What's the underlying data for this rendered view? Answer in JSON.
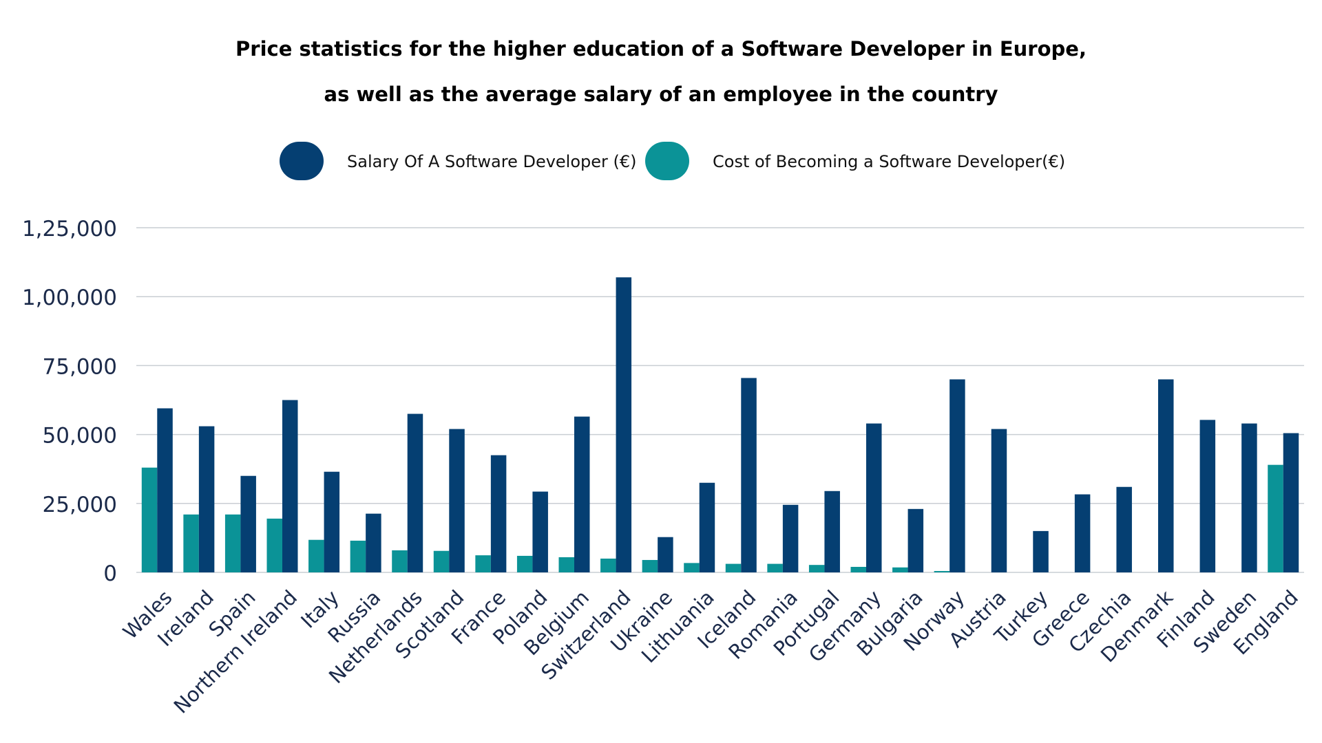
{
  "chart_data": {
    "type": "bar",
    "title": "Price statistics for the higher education of a Software Developer in Europe,",
    "subtitle": "as well as the average salary of an employee in the country",
    "xlabel": "",
    "ylabel": "",
    "ylim": [
      0,
      125000
    ],
    "yticks": [
      0,
      25000,
      50000,
      75000,
      100000,
      125000
    ],
    "ytick_labels": [
      "0",
      "25,000",
      "50,000",
      "75,000",
      "1,00,000",
      "1,25,000"
    ],
    "grid": true,
    "legend_position": "top",
    "categories": [
      "Wales",
      "Ireland",
      "Spain",
      "Northern Ireland",
      "Italy",
      "Russia",
      "Netherlands",
      "Scotland",
      "France",
      "Poland",
      "Belgium",
      "Switzerland",
      "Ukraine",
      "Lithuania",
      "Iceland",
      "Romania",
      "Portugal",
      "Germany",
      "Bulgaria",
      "Norway",
      "Austria",
      "Turkey",
      "Greece",
      "Czechia",
      "Denmark",
      "Finland",
      "Sweden",
      "England"
    ],
    "series": [
      {
        "name": "Cost of Becoming a Software Developer(€)",
        "color": "#0b9397",
        "values": [
          38000,
          21000,
          21000,
          19500,
          11800,
          11500,
          8000,
          7800,
          6200,
          6000,
          5500,
          5000,
          4500,
          3400,
          3100,
          3100,
          2700,
          2000,
          1800,
          500,
          0,
          0,
          0,
          0,
          0,
          0,
          0,
          39000
        ]
      },
      {
        "name": "Salary Of A Software Developer (€)",
        "color": "#053f72",
        "values": [
          59500,
          53000,
          35000,
          62500,
          36500,
          21300,
          57500,
          52000,
          42500,
          29300,
          56500,
          107000,
          12800,
          32500,
          70500,
          24500,
          29500,
          54000,
          23000,
          70000,
          52000,
          15000,
          28300,
          31000,
          70000,
          55300,
          54000,
          50500
        ]
      }
    ]
  },
  "legend": {
    "items": [
      {
        "label": "Salary Of A Software Developer (€)",
        "color": "#053f72"
      },
      {
        "label": "Cost of Becoming a Software Developer(€)",
        "color": "#0b9397"
      }
    ]
  }
}
